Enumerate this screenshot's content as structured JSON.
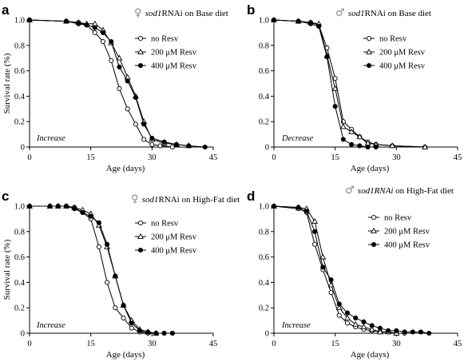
{
  "chart_data": [
    {
      "type": "line",
      "panel_label": "a",
      "sex_symbol": "♀",
      "title_gene": "sod1",
      "title_rest": "RNAi on Base diet",
      "xlabel": "Age (days)",
      "ylabel": "Survival rate (%)",
      "xlim": [
        0,
        45
      ],
      "ylim": [
        0,
        1
      ],
      "xticks": [
        "0",
        "15",
        "30",
        "45"
      ],
      "yticks": [
        "0",
        "0.2",
        "0.4",
        "0.6",
        "0.8",
        "1.0"
      ],
      "annotation": "Increase",
      "legend_position": "top-right",
      "series": [
        {
          "name": "no Resv",
          "marker": "circle-open",
          "x": [
            0,
            9,
            12,
            14,
            16,
            18,
            20,
            22,
            24,
            26,
            28,
            30,
            32,
            35
          ],
          "y": [
            1.0,
            0.99,
            0.98,
            0.96,
            0.9,
            0.83,
            0.68,
            0.46,
            0.3,
            0.18,
            0.06,
            0.02,
            0.01,
            0.0
          ]
        },
        {
          "name": "200 μM Resv",
          "marker": "triangle-open",
          "x": [
            0,
            9,
            12,
            14,
            16,
            18,
            20,
            22,
            24,
            26,
            28,
            30,
            33,
            36,
            39
          ],
          "y": [
            1.0,
            0.99,
            0.98,
            0.97,
            0.97,
            0.92,
            0.82,
            0.7,
            0.55,
            0.4,
            0.2,
            0.06,
            0.03,
            0.02,
            0.01
          ]
        },
        {
          "name": "400 μM Resv",
          "marker": "circle-filled",
          "x": [
            0,
            9,
            12,
            14,
            16,
            18,
            20,
            22,
            24,
            26,
            28,
            30,
            33,
            36,
            39,
            43
          ],
          "y": [
            1.0,
            0.99,
            0.97,
            0.96,
            0.94,
            0.9,
            0.83,
            0.63,
            0.52,
            0.39,
            0.18,
            0.07,
            0.04,
            0.02,
            0.01,
            0.0
          ]
        }
      ]
    },
    {
      "type": "line",
      "panel_label": "b",
      "sex_symbol": "♂",
      "title_gene": "sod1",
      "title_rest": "RNAi on Base diet",
      "xlabel": "Age (days)",
      "ylabel": "",
      "xlim": [
        0,
        45
      ],
      "ylim": [
        0,
        1
      ],
      "xticks": [
        "0",
        "15",
        "30",
        "45"
      ],
      "yticks": [
        "0",
        "0.2",
        "0.4",
        "0.6",
        "0.8",
        "1.0"
      ],
      "annotation": "Decrease",
      "legend_position": "top-right",
      "series": [
        {
          "name": "no Resv",
          "marker": "circle-open",
          "x": [
            0,
            6,
            9,
            11,
            13,
            15,
            17,
            19,
            21,
            23,
            25,
            29,
            37
          ],
          "y": [
            1.0,
            0.99,
            0.98,
            0.96,
            0.78,
            0.54,
            0.2,
            0.14,
            0.08,
            0.04,
            0.02,
            0.01,
            0.0
          ]
        },
        {
          "name": "200 μM Resv",
          "marker": "triangle-open",
          "x": [
            0,
            6,
            9,
            11,
            13,
            15,
            17,
            19,
            21,
            23,
            25,
            29,
            37
          ],
          "y": [
            1.0,
            0.99,
            0.98,
            0.97,
            0.72,
            0.46,
            0.16,
            0.12,
            0.08,
            0.03,
            0.02,
            0.01,
            0.0
          ]
        },
        {
          "name": "400 μM Resv",
          "marker": "circle-filled",
          "x": [
            0,
            6,
            9,
            11,
            13,
            15,
            17,
            19,
            21,
            23,
            25
          ],
          "y": [
            1.0,
            0.99,
            0.97,
            0.95,
            0.71,
            0.32,
            0.06,
            0.02,
            0.01,
            0.0,
            0.0
          ]
        }
      ]
    },
    {
      "type": "line",
      "panel_label": "c",
      "sex_symbol": "♀",
      "title_gene": "sod1",
      "title_rest": "RNAi on High-Fat diet",
      "xlabel": "Age (days)",
      "ylabel": "Survival rate (%)",
      "xlim": [
        0,
        45
      ],
      "ylim": [
        0,
        1
      ],
      "xticks": [
        "0",
        "15",
        "30",
        "45"
      ],
      "yticks": [
        "0",
        "0.2",
        "0.4",
        "0.6",
        "0.8",
        "1.0"
      ],
      "annotation": "Increase",
      "legend_position": "top-right",
      "series": [
        {
          "name": "no Resv",
          "marker": "circle-open",
          "x": [
            0,
            5,
            7,
            9,
            11,
            13,
            15,
            17,
            19,
            21,
            23,
            25,
            27,
            29,
            31,
            33,
            35
          ],
          "y": [
            1.0,
            1.0,
            1.0,
            1.0,
            0.99,
            0.95,
            0.9,
            0.68,
            0.4,
            0.2,
            0.12,
            0.04,
            0.01,
            0.0,
            0.0,
            0.0,
            0.0
          ]
        },
        {
          "name": "200 μM Resv",
          "marker": "triangle-open",
          "x": [
            0,
            5,
            7,
            9,
            11,
            13,
            15,
            17,
            19,
            21,
            23,
            25,
            27,
            29,
            31
          ],
          "y": [
            1.0,
            1.0,
            1.0,
            1.0,
            0.99,
            0.97,
            0.94,
            0.85,
            0.68,
            0.45,
            0.22,
            0.1,
            0.03,
            0.01,
            0.0
          ]
        },
        {
          "name": "400 μM Resv",
          "marker": "circle-filled",
          "x": [
            0,
            5,
            7,
            9,
            11,
            13,
            15,
            17,
            19,
            21,
            23,
            25,
            27,
            29,
            31,
            33,
            35
          ],
          "y": [
            1.0,
            1.0,
            1.0,
            1.0,
            0.98,
            0.95,
            0.92,
            0.87,
            0.7,
            0.45,
            0.22,
            0.08,
            0.02,
            0.01,
            0.0,
            0.0,
            0.0
          ]
        }
      ]
    },
    {
      "type": "line",
      "panel_label": "d",
      "sex_symbol": "♂",
      "title_gene": "sod1RNAi",
      "title_rest": "on High-Fat diet",
      "xlabel": "Age (days)",
      "ylabel": "",
      "xlim": [
        0,
        45
      ],
      "ylim": [
        0,
        1
      ],
      "xticks": [
        "0",
        "15",
        "30",
        "45"
      ],
      "yticks": [
        "0",
        "0.2",
        "0.4",
        "0.6",
        "0.8",
        "1.0"
      ],
      "annotation": "Increase",
      "legend_position": "top-right",
      "series": [
        {
          "name": "no Resv",
          "marker": "circle-open",
          "x": [
            0,
            6,
            8,
            10,
            12,
            14,
            16,
            18,
            20,
            22,
            24,
            26,
            28,
            30,
            32
          ],
          "y": [
            1.0,
            0.98,
            0.95,
            0.7,
            0.5,
            0.32,
            0.14,
            0.08,
            0.05,
            0.03,
            0.02,
            0.01,
            0.01,
            0.0,
            0.0
          ]
        },
        {
          "name": "200 μM Resv",
          "marker": "triangle-open",
          "x": [
            0,
            6,
            8,
            10,
            12,
            14,
            16,
            18,
            20,
            22,
            24,
            26,
            28,
            30
          ],
          "y": [
            1.0,
            0.99,
            0.98,
            0.88,
            0.6,
            0.38,
            0.2,
            0.12,
            0.07,
            0.05,
            0.03,
            0.01,
            0.01,
            0.0
          ]
        },
        {
          "name": "400 μM Resv",
          "marker": "circle-filled",
          "x": [
            0,
            6,
            8,
            10,
            12,
            14,
            16,
            18,
            20,
            22,
            24,
            26,
            28,
            30,
            32,
            34,
            36,
            38
          ],
          "y": [
            1.0,
            0.99,
            0.96,
            0.8,
            0.52,
            0.42,
            0.23,
            0.16,
            0.12,
            0.09,
            0.06,
            0.04,
            0.02,
            0.02,
            0.01,
            0.01,
            0.01,
            0.0
          ]
        }
      ]
    }
  ]
}
